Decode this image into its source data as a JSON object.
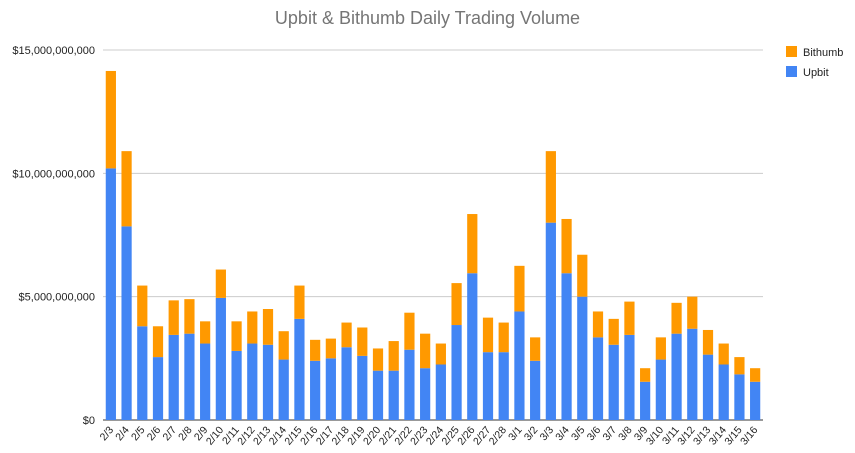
{
  "chart_data": {
    "type": "bar",
    "stacked": true,
    "title": "Upbit & Bithumb Daily Trading Volume",
    "xlabel": "",
    "ylabel": "",
    "ylim": [
      0,
      15000000000
    ],
    "yticks": [
      0,
      5000000000,
      10000000000,
      15000000000
    ],
    "ytick_labels": [
      "$0",
      "$5,000,000,000",
      "$10,000,000,000",
      "$15,000,000,000"
    ],
    "grid": true,
    "legend_position": "top-right",
    "categories": [
      "2/3",
      "2/4",
      "2/5",
      "2/6",
      "2/7",
      "2/8",
      "2/9",
      "2/10",
      "2/11",
      "2/12",
      "2/13",
      "2/14",
      "2/15",
      "2/16",
      "2/17",
      "2/18",
      "2/19",
      "2/20",
      "2/21",
      "2/22",
      "2/23",
      "2/24",
      "2/25",
      "2/26",
      "2/27",
      "2/28",
      "3/1",
      "3/2",
      "3/3",
      "3/4",
      "3/5",
      "3/6",
      "3/7",
      "3/8",
      "3/9",
      "3/10",
      "3/11",
      "3/12",
      "3/13",
      "3/14",
      "3/15",
      "3/16"
    ],
    "series": [
      {
        "name": "Upbit",
        "color": "#4285f4",
        "values": [
          10200000000,
          7850000000,
          3800000000,
          2550000000,
          3450000000,
          3500000000,
          3100000000,
          4950000000,
          2800000000,
          3100000000,
          3050000000,
          2450000000,
          4100000000,
          2400000000,
          2500000000,
          2950000000,
          2600000000,
          2000000000,
          2000000000,
          2850000000,
          2100000000,
          2250000000,
          3850000000,
          5950000000,
          2750000000,
          2750000000,
          4400000000,
          2400000000,
          8000000000,
          5950000000,
          5000000000,
          3350000000,
          3050000000,
          3450000000,
          1550000000,
          2450000000,
          3500000000,
          3700000000,
          2650000000,
          2250000000,
          1850000000,
          1550000000
        ]
      },
      {
        "name": "Bithumb",
        "color": "#ff9900",
        "values": [
          3950000000,
          3050000000,
          1650000000,
          1250000000,
          1400000000,
          1400000000,
          900000000,
          1150000000,
          1200000000,
          1300000000,
          1450000000,
          1150000000,
          1350000000,
          850000000,
          800000000,
          1000000000,
          1150000000,
          900000000,
          1200000000,
          1500000000,
          1400000000,
          850000000,
          1700000000,
          2400000000,
          1400000000,
          1200000000,
          1850000000,
          950000000,
          2900000000,
          2200000000,
          1700000000,
          1050000000,
          1050000000,
          1350000000,
          550000000,
          900000000,
          1250000000,
          1300000000,
          1000000000,
          850000000,
          700000000,
          550000000
        ]
      }
    ]
  }
}
